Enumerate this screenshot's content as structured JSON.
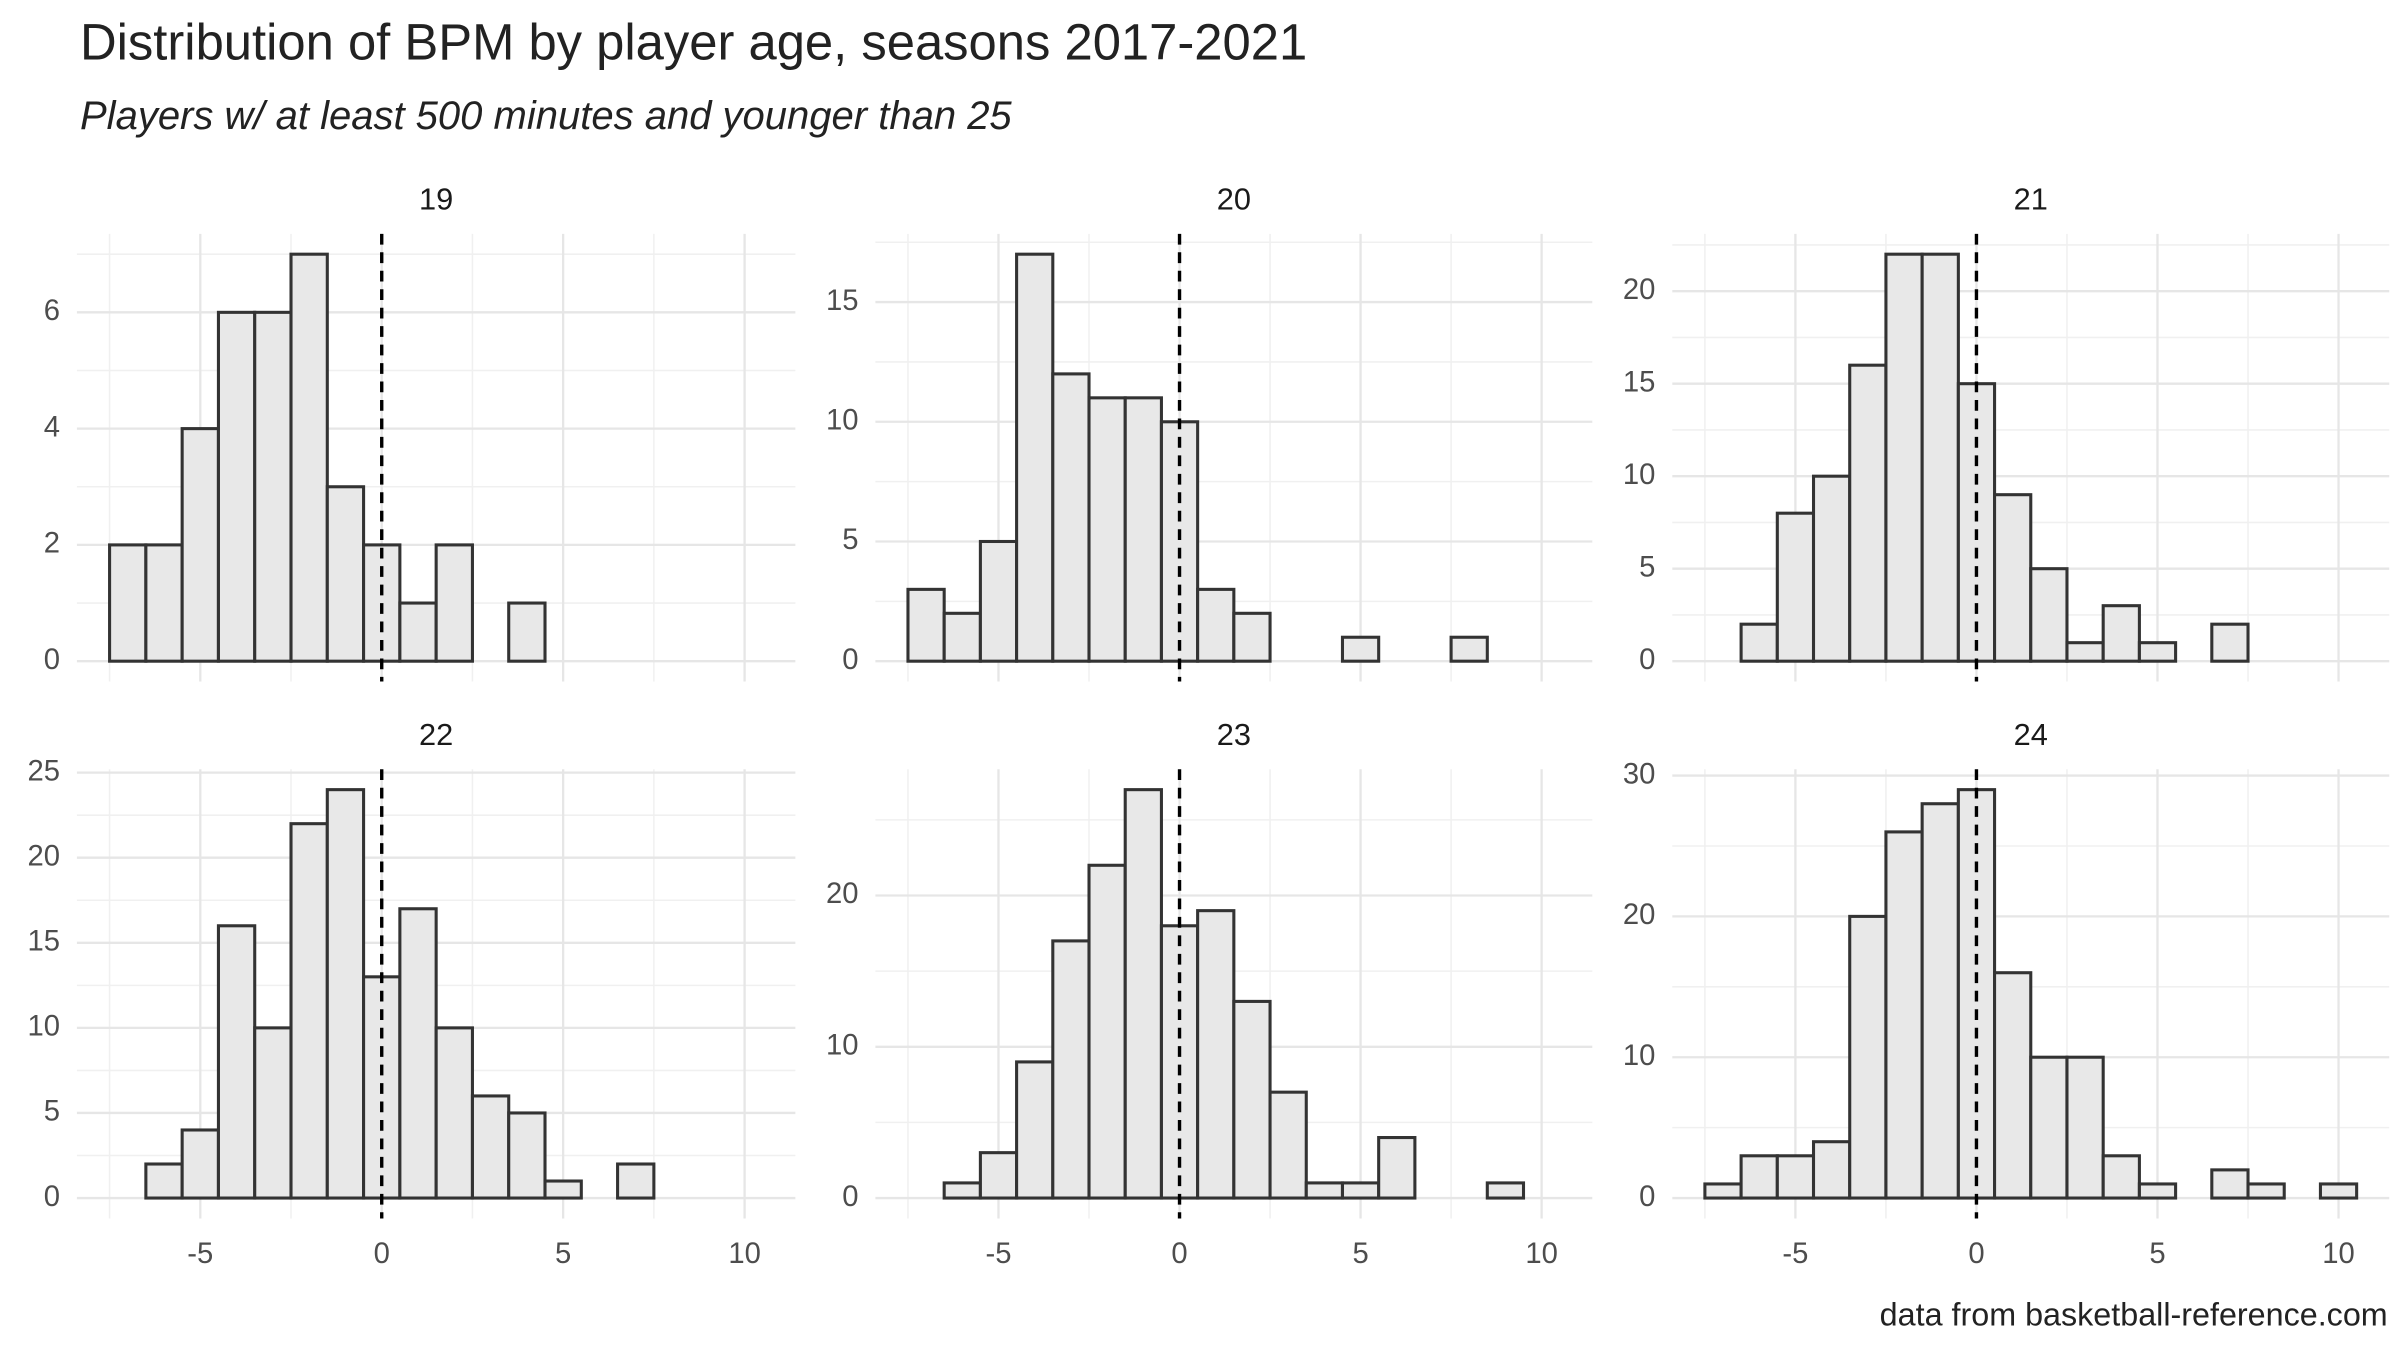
{
  "title": "Distribution of BPM by player age, seasons 2017-2021",
  "subtitle": "Players w/ at least 500 minutes and younger than 25",
  "caption": "data from basketball-reference.com",
  "chart_data": [
    {
      "type": "histogram",
      "strip": "19",
      "bins": [
        -7.5,
        -6.5,
        -5.5,
        -4.5,
        -3.5,
        -2.5,
        -1.5,
        -0.5,
        0.5,
        1.5,
        2.5,
        3.5,
        4.5,
        5.5,
        6.5,
        7.5,
        8.5,
        9.5,
        10.5
      ],
      "counts": [
        2,
        2,
        4,
        6,
        6,
        7,
        3,
        2,
        1,
        2,
        0,
        1,
        0,
        0,
        0,
        0,
        0,
        0
      ],
      "xlim": [
        -8.4,
        11.4
      ],
      "xticks": [
        -5,
        0,
        5,
        10
      ],
      "minor_xticks": [
        -7.5,
        -2.5,
        2.5,
        7.5
      ],
      "ylim": [
        -0.35,
        7.35
      ],
      "yticks": [
        0,
        2,
        4,
        6
      ],
      "minor_yticks": [
        1,
        3,
        5,
        7
      ],
      "vline": 0,
      "fill": "#e8e8e8",
      "edge_color": "#333333",
      "grid": true
    },
    {
      "type": "histogram",
      "strip": "20",
      "bins": [
        -7.5,
        -6.5,
        -5.5,
        -4.5,
        -3.5,
        -2.5,
        -1.5,
        -0.5,
        0.5,
        1.5,
        2.5,
        3.5,
        4.5,
        5.5,
        6.5,
        7.5,
        8.5,
        9.5,
        10.5
      ],
      "counts": [
        3,
        2,
        5,
        17,
        12,
        11,
        11,
        10,
        3,
        2,
        0,
        0,
        1,
        0,
        0,
        1,
        0,
        0
      ],
      "xlim": [
        -8.4,
        11.4
      ],
      "xticks": [
        -5,
        0,
        5,
        10
      ],
      "minor_xticks": [
        -7.5,
        -2.5,
        2.5,
        7.5
      ],
      "ylim": [
        -0.85,
        17.85
      ],
      "yticks": [
        0,
        5,
        10,
        15
      ],
      "minor_yticks": [
        2.5,
        7.5,
        12.5,
        17.5
      ],
      "vline": 0,
      "fill": "#e8e8e8",
      "edge_color": "#333333",
      "grid": true
    },
    {
      "type": "histogram",
      "strip": "21",
      "bins": [
        -7.5,
        -6.5,
        -5.5,
        -4.5,
        -3.5,
        -2.5,
        -1.5,
        -0.5,
        0.5,
        1.5,
        2.5,
        3.5,
        4.5,
        5.5,
        6.5,
        7.5,
        8.5,
        9.5,
        10.5
      ],
      "counts": [
        0,
        2,
        8,
        10,
        16,
        22,
        22,
        15,
        9,
        5,
        1,
        3,
        1,
        0,
        2,
        0,
        0,
        0
      ],
      "xlim": [
        -8.4,
        11.4
      ],
      "xticks": [
        -5,
        0,
        5,
        10
      ],
      "minor_xticks": [
        -7.5,
        -2.5,
        2.5,
        7.5
      ],
      "ylim": [
        -1.1,
        23.1
      ],
      "yticks": [
        0,
        5,
        10,
        15,
        20
      ],
      "minor_yticks": [
        2.5,
        7.5,
        12.5,
        17.5,
        22.5
      ],
      "vline": 0,
      "fill": "#e8e8e8",
      "edge_color": "#333333",
      "grid": true
    },
    {
      "type": "histogram",
      "strip": "22",
      "bins": [
        -7.5,
        -6.5,
        -5.5,
        -4.5,
        -3.5,
        -2.5,
        -1.5,
        -0.5,
        0.5,
        1.5,
        2.5,
        3.5,
        4.5,
        5.5,
        6.5,
        7.5,
        8.5,
        9.5,
        10.5
      ],
      "counts": [
        0,
        2,
        4,
        16,
        10,
        22,
        24,
        13,
        17,
        10,
        6,
        5,
        1,
        0,
        2,
        0,
        0,
        0
      ],
      "xlim": [
        -8.4,
        11.4
      ],
      "xticks": [
        -5,
        0,
        5,
        10
      ],
      "minor_xticks": [
        -7.5,
        -2.5,
        2.5,
        7.5
      ],
      "ylim": [
        -1.2,
        25.2
      ],
      "yticks": [
        0,
        5,
        10,
        15,
        20,
        25
      ],
      "minor_yticks": [
        2.5,
        7.5,
        12.5,
        17.5,
        22.5
      ],
      "vline": 0,
      "fill": "#e8e8e8",
      "edge_color": "#333333",
      "grid": true
    },
    {
      "type": "histogram",
      "strip": "23",
      "bins": [
        -7.5,
        -6.5,
        -5.5,
        -4.5,
        -3.5,
        -2.5,
        -1.5,
        -0.5,
        0.5,
        1.5,
        2.5,
        3.5,
        4.5,
        5.5,
        6.5,
        7.5,
        8.5,
        9.5,
        10.5
      ],
      "counts": [
        0,
        1,
        3,
        9,
        17,
        22,
        27,
        18,
        19,
        13,
        7,
        1,
        1,
        4,
        0,
        0,
        1,
        0
      ],
      "xlim": [
        -8.4,
        11.4
      ],
      "xticks": [
        -5,
        0,
        5,
        10
      ],
      "minor_xticks": [
        -7.5,
        -2.5,
        2.5,
        7.5
      ],
      "ylim": [
        -1.35,
        28.35
      ],
      "yticks": [
        0,
        10,
        20
      ],
      "minor_yticks": [
        5,
        15,
        25
      ],
      "vline": 0,
      "fill": "#e8e8e8",
      "edge_color": "#333333",
      "grid": true
    },
    {
      "type": "histogram",
      "strip": "24",
      "bins": [
        -7.5,
        -6.5,
        -5.5,
        -4.5,
        -3.5,
        -2.5,
        -1.5,
        -0.5,
        0.5,
        1.5,
        2.5,
        3.5,
        4.5,
        5.5,
        6.5,
        7.5,
        8.5,
        9.5,
        10.5
      ],
      "counts": [
        1,
        3,
        3,
        4,
        20,
        26,
        28,
        29,
        16,
        10,
        10,
        3,
        1,
        0,
        2,
        1,
        0,
        1
      ],
      "xlim": [
        -8.4,
        11.4
      ],
      "xticks": [
        -5,
        0,
        5,
        10
      ],
      "minor_xticks": [
        -7.5,
        -2.5,
        2.5,
        7.5
      ],
      "ylim": [
        -1.45,
        30.45
      ],
      "yticks": [
        0,
        10,
        20,
        30
      ],
      "minor_yticks": [
        5,
        15,
        25
      ],
      "vline": 0,
      "fill": "#e8e8e8",
      "edge_color": "#333333",
      "grid": true
    }
  ]
}
